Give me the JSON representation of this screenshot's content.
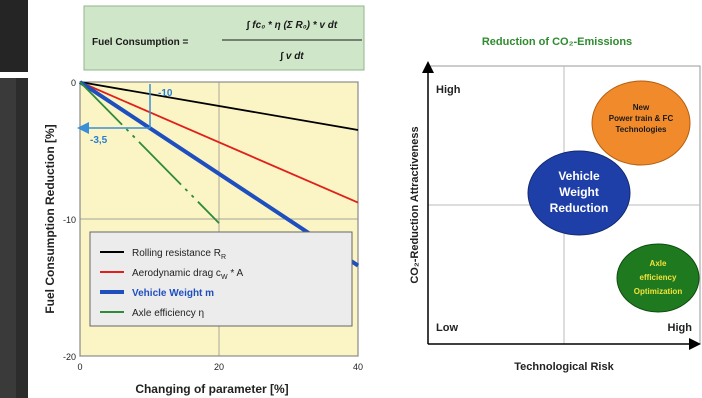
{
  "left_chart": {
    "formula": {
      "label": "Fuel Consumption =",
      "numerator": "∫ fc₀ * η (Σ R₀) * v dt",
      "denominator": "∫ v dt"
    },
    "ylabel": "Fuel Consumption Reduction [%]",
    "xlabel": "Changing of parameter [%]",
    "annotations": [
      "-10",
      "-3,5"
    ],
    "legend": [
      {
        "label": "Rolling resistance  R",
        "sub": "R",
        "color": "#000000"
      },
      {
        "label": "Aerodynamic drag  c",
        "sub": "W",
        "tail": " * A",
        "color": "#e0201a"
      },
      {
        "label": "Vehicle Weight  m",
        "color": "#1f4fbf"
      },
      {
        "label": "Axle efficiency   η",
        "color": "#2e8b3a"
      }
    ]
  },
  "chart_data": [
    {
      "type": "line",
      "xlabel": "Changing of parameter [%]",
      "ylabel": "Fuel Consumption Reduction [%]",
      "xlim": [
        0,
        40
      ],
      "ylim": [
        -20,
        0
      ],
      "x_ticks": [
        "0",
        "20",
        "40"
      ],
      "y_ticks": [
        "0",
        "-10",
        "-20"
      ],
      "series": [
        {
          "name": "Rolling resistance  R_R",
          "color": "#000000",
          "x": [
            0,
            40
          ],
          "y": [
            0,
            -3.5
          ]
        },
        {
          "name": "Aerodynamic drag  c_W * A",
          "color": "#e0201a",
          "x": [
            0,
            40
          ],
          "y": [
            0,
            -8.8
          ]
        },
        {
          "name": "Vehicle Weight  m",
          "color": "#1f4fbf",
          "x": [
            0,
            40
          ],
          "y": [
            0,
            -13.4
          ]
        },
        {
          "name": "Axle efficiency  η",
          "color": "#2e8b3a",
          "x": [
            0,
            20
          ],
          "y": [
            0,
            -10.3
          ]
        }
      ]
    },
    {
      "type": "scatter",
      "title": "Reduction of CO₂-Emissions",
      "xlabel": "Technological Risk",
      "ylabel": "CO₂-Reduction Attractiveness",
      "axis_labels": {
        "top_left": "High",
        "bottom_left": "Low",
        "bottom_right": "High"
      },
      "bubbles": [
        {
          "label": [
            "New",
            "Power train & FC",
            "Technologies"
          ],
          "risk": "high",
          "attractiveness": "high",
          "color": "#f08a2a"
        },
        {
          "label": [
            "Vehicle",
            "Weight",
            "Reduction"
          ],
          "risk": "medium",
          "attractiveness": "medium",
          "color": "#1f3fa8"
        },
        {
          "label": [
            "Axle",
            "efficiency",
            "Optimization"
          ],
          "risk": "high",
          "attractiveness": "low",
          "color": "#1f7a1f"
        }
      ]
    }
  ]
}
